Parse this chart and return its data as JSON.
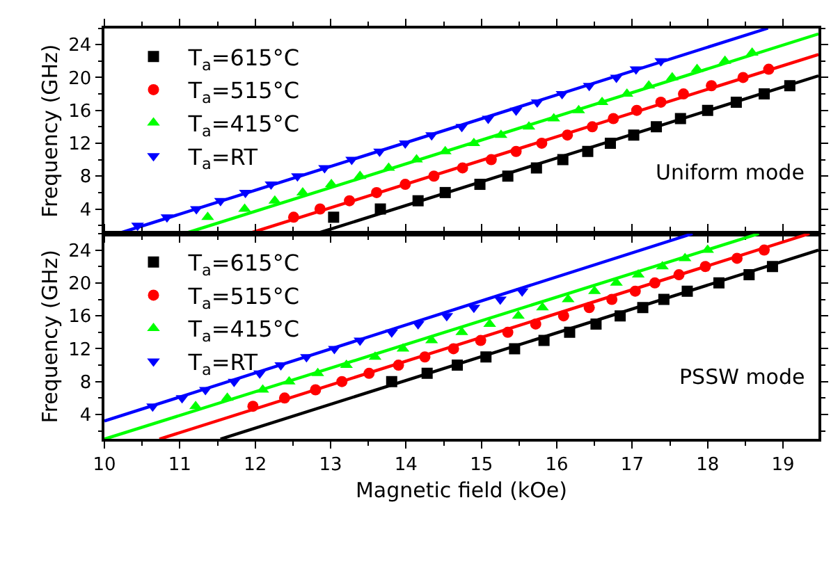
{
  "chart_data": [
    {
      "type": "scatter",
      "ylabel": "Frequency (GHz)",
      "xlim": [
        10,
        19.47
      ],
      "ylim": [
        1,
        26
      ],
      "xticks": [
        10,
        11,
        12,
        13,
        14,
        15,
        16,
        17,
        18,
        19
      ],
      "yticks": [
        4,
        8,
        12,
        16,
        20,
        24
      ],
      "tick_labels": "y",
      "legend": "top left",
      "grid": false,
      "annotations": [
        "Uniform mode"
      ],
      "series": [
        {
          "name": "T$_{a}$=615°C",
          "color": "#000000",
          "marker": "square",
          "x": [
            13.04,
            13.66,
            14.16,
            14.52,
            14.98,
            15.35,
            15.73,
            16.08,
            16.41,
            16.71,
            17.02,
            17.32,
            17.64,
            18.0,
            18.38,
            18.75,
            19.09
          ],
          "values": [
            3,
            4,
            5,
            6,
            7,
            8,
            9,
            10,
            11,
            12,
            13,
            14,
            15,
            16,
            17,
            18,
            19
          ]
        },
        {
          "name": "T$_{a}$=515°C",
          "color": "#ff0000",
          "marker": "circle",
          "x": [
            12.51,
            12.86,
            13.25,
            13.61,
            13.99,
            14.37,
            14.75,
            15.13,
            15.46,
            15.8,
            16.14,
            16.47,
            16.75,
            17.06,
            17.38,
            17.68,
            18.05,
            18.47,
            18.81
          ],
          "values": [
            3,
            4,
            5,
            6,
            7,
            8,
            9,
            10,
            11,
            12,
            13,
            14,
            15,
            16,
            17,
            18,
            19,
            20,
            21
          ]
        },
        {
          "name": "T$_{a}$=415°C",
          "color": "#00ff00",
          "marker": "triangle",
          "x": [
            11.37,
            11.86,
            12.26,
            12.63,
            13.01,
            13.39,
            13.77,
            14.14,
            14.52,
            14.9,
            15.26,
            15.63,
            15.96,
            16.29,
            16.6,
            16.93,
            17.22,
            17.53,
            17.86,
            18.23,
            18.59
          ],
          "values": [
            3,
            4,
            5,
            6,
            7,
            8,
            9,
            10,
            11,
            12,
            13,
            14,
            15,
            16,
            17,
            18,
            19,
            20,
            21,
            22,
            23
          ]
        },
        {
          "name": "T$_{a}$=RT",
          "color": "#0000ff",
          "marker": "triangle-down",
          "x": [
            10.44,
            10.83,
            11.22,
            11.54,
            11.87,
            12.21,
            12.56,
            12.92,
            13.28,
            13.65,
            13.99,
            14.34,
            14.74,
            15.09,
            15.46,
            15.74,
            16.07,
            16.43,
            16.79,
            17.05,
            17.38
          ],
          "values": [
            2,
            3,
            4,
            5,
            6,
            7,
            8,
            9,
            10,
            11,
            12,
            13,
            14,
            15,
            16,
            17,
            18,
            19,
            20,
            21,
            22
          ]
        },
        {
          "type": "line",
          "color": "#000000",
          "x": [
            12.81,
            19.47
          ],
          "values": [
            1,
            20.2
          ]
        },
        {
          "type": "line",
          "color": "#ff0000",
          "x": [
            11.91,
            19.47
          ],
          "values": [
            1,
            22.8
          ]
        },
        {
          "type": "line",
          "color": "#00ff00",
          "x": [
            11.06,
            19.47
          ],
          "values": [
            1,
            25.3
          ]
        },
        {
          "type": "line",
          "color": "#0000ff",
          "x": [
            10.18,
            18.8
          ],
          "values": [
            1,
            26
          ]
        }
      ]
    },
    {
      "type": "scatter",
      "xlabel": "Magnetic field (kOe)",
      "ylabel": "Frequency (GHz)",
      "xlim": [
        10,
        19.47
      ],
      "ylim": [
        1,
        26
      ],
      "xticks": [
        10,
        11,
        12,
        13,
        14,
        15,
        16,
        17,
        18,
        19
      ],
      "yticks": [
        4,
        8,
        12,
        16,
        20,
        24
      ],
      "legend": "top left",
      "grid": false,
      "annotations": [
        "PSSW mode"
      ],
      "series": [
        {
          "name": "T$_{a}$=615°C",
          "color": "#000000",
          "marker": "square",
          "x": [
            13.81,
            14.28,
            14.68,
            15.06,
            15.44,
            15.83,
            16.17,
            16.52,
            16.84,
            17.14,
            17.42,
            17.73,
            18.15,
            18.55,
            18.86
          ],
          "values": [
            8,
            9,
            10,
            11,
            12,
            13,
            14,
            15,
            16,
            17,
            18,
            19,
            20,
            21,
            22
          ]
        },
        {
          "name": "T$_{a}$=515°C",
          "color": "#ff0000",
          "marker": "circle",
          "x": [
            11.97,
            12.39,
            12.8,
            13.15,
            13.51,
            13.9,
            14.25,
            14.63,
            14.99,
            15.35,
            15.72,
            16.09,
            16.43,
            16.73,
            17.04,
            17.3,
            17.62,
            17.97,
            18.39,
            18.75
          ],
          "values": [
            5,
            6,
            7,
            8,
            9,
            10,
            11,
            12,
            13,
            14,
            15,
            16,
            17,
            18,
            19,
            20,
            21,
            22,
            23,
            24
          ]
        },
        {
          "name": "T$_{a}$=415°C",
          "color": "#00ff00",
          "marker": "triangle",
          "x": [
            11.21,
            11.63,
            12.1,
            12.45,
            12.83,
            13.21,
            13.59,
            13.96,
            14.34,
            14.74,
            15.11,
            15.49,
            15.81,
            16.15,
            16.5,
            16.79,
            17.08,
            17.4,
            17.7,
            18.0
          ],
          "values": [
            5,
            6,
            7,
            8,
            9,
            10,
            11,
            12,
            13,
            14,
            15,
            16,
            17,
            18,
            19,
            20,
            21,
            22,
            23,
            24
          ]
        },
        {
          "name": "T$_{a}$=RT",
          "color": "#0000ff",
          "marker": "triangle-down",
          "x": [
            10.64,
            11.03,
            11.34,
            11.72,
            12.06,
            12.34,
            12.68,
            13.05,
            13.39,
            13.81,
            14.16,
            14.54,
            14.9,
            15.25,
            15.54
          ],
          "values": [
            5,
            6,
            7,
            8,
            9,
            10,
            11,
            12,
            13,
            14,
            15,
            16,
            17,
            18,
            19
          ]
        },
        {
          "type": "line",
          "color": "#000000",
          "x": [
            11.54,
            19.47
          ],
          "values": [
            1,
            24.0
          ]
        },
        {
          "type": "line",
          "color": "#ff0000",
          "x": [
            10.73,
            19.35
          ],
          "values": [
            1,
            26
          ]
        },
        {
          "type": "line",
          "color": "#00ff00",
          "x": [
            10.0,
            18.68
          ],
          "values": [
            1,
            26
          ]
        },
        {
          "type": "line",
          "color": "#0000ff",
          "x": [
            10.0,
            17.8
          ],
          "values": [
            3.2,
            26
          ]
        }
      ]
    }
  ]
}
